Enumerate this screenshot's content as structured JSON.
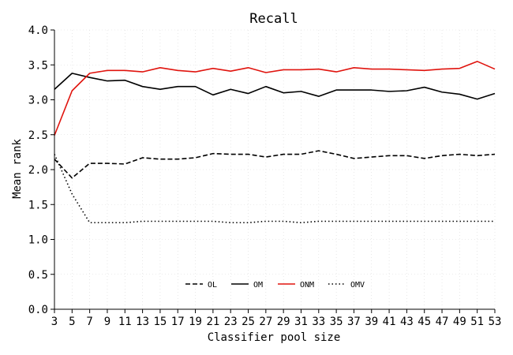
{
  "chart_data": {
    "type": "line",
    "title": "Recall",
    "xlabel": "Classifier pool size",
    "ylabel": "Mean rank",
    "x": [
      3,
      5,
      7,
      9,
      11,
      13,
      15,
      17,
      19,
      21,
      23,
      25,
      27,
      29,
      31,
      33,
      35,
      37,
      39,
      41,
      43,
      45,
      47,
      49,
      51,
      53
    ],
    "xticks": [
      "3",
      "5",
      "7",
      "9",
      "11",
      "13",
      "15",
      "17",
      "19",
      "21",
      "23",
      "25",
      "27",
      "29",
      "31",
      "33",
      "35",
      "37",
      "39",
      "41",
      "43",
      "45",
      "47",
      "49",
      "51",
      "53"
    ],
    "yticks": [
      "0.0",
      "0.5",
      "1.0",
      "1.5",
      "2.0",
      "2.5",
      "3.0",
      "3.5",
      "4.0"
    ],
    "xlim": [
      3,
      53
    ],
    "ylim": [
      0,
      4
    ],
    "grid": true,
    "legend_position": "lower-center",
    "series": [
      {
        "name": "OL",
        "color": "#000000",
        "dash": "dashed",
        "values": [
          2.15,
          1.88,
          2.09,
          2.09,
          2.08,
          2.17,
          2.15,
          2.15,
          2.17,
          2.23,
          2.22,
          2.22,
          2.18,
          2.22,
          2.22,
          2.27,
          2.22,
          2.16,
          2.18,
          2.2,
          2.2,
          2.16,
          2.2,
          2.22,
          2.2,
          2.22
        ]
      },
      {
        "name": "OM",
        "color": "#000000",
        "dash": "solid",
        "values": [
          3.15,
          3.38,
          3.32,
          3.27,
          3.28,
          3.19,
          3.15,
          3.19,
          3.19,
          3.07,
          3.15,
          3.09,
          3.19,
          3.1,
          3.12,
          3.05,
          3.14,
          3.14,
          3.14,
          3.12,
          3.13,
          3.18,
          3.11,
          3.08,
          3.01,
          3.09
        ]
      },
      {
        "name": "ONM",
        "color": "#e0140e",
        "dash": "solid",
        "values": [
          2.49,
          3.13,
          3.38,
          3.42,
          3.42,
          3.4,
          3.46,
          3.42,
          3.4,
          3.45,
          3.41,
          3.46,
          3.39,
          3.43,
          3.43,
          3.44,
          3.4,
          3.46,
          3.44,
          3.44,
          3.43,
          3.42,
          3.44,
          3.45,
          3.55,
          3.44
        ]
      },
      {
        "name": "OMV",
        "color": "#000000",
        "dash": "dotted",
        "values": [
          2.22,
          1.65,
          1.24,
          1.24,
          1.24,
          1.26,
          1.26,
          1.26,
          1.26,
          1.26,
          1.24,
          1.24,
          1.26,
          1.26,
          1.24,
          1.26,
          1.26,
          1.26,
          1.26,
          1.26,
          1.26,
          1.26,
          1.26,
          1.26,
          1.26,
          1.26
        ]
      }
    ]
  }
}
